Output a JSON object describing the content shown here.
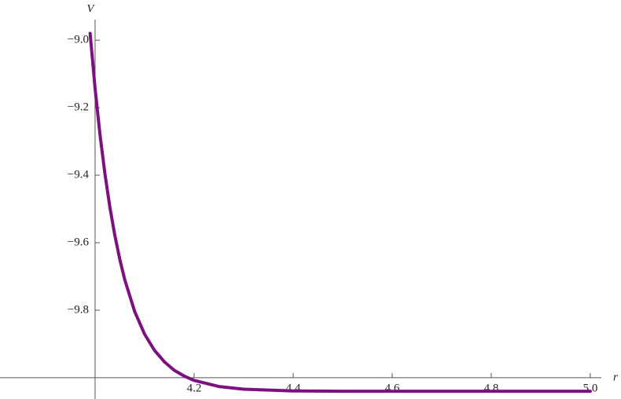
{
  "chart_data": {
    "type": "line",
    "x_label": "r",
    "y_label": "V",
    "x": [
      3.99,
      4.0,
      4.01,
      4.02,
      4.03,
      4.04,
      4.05,
      4.06,
      4.08,
      4.1,
      4.12,
      4.14,
      4.16,
      4.18,
      4.2,
      4.25,
      4.3,
      4.4,
      4.5,
      4.6,
      4.7,
      4.8,
      4.9,
      5.0
    ],
    "series": [
      {
        "color": "#7d1080",
        "values": [
          -8.98,
          -9.143,
          -9.281,
          -9.397,
          -9.496,
          -9.579,
          -9.65,
          -9.71,
          -9.804,
          -9.871,
          -9.919,
          -9.953,
          -9.978,
          -9.995,
          -10.008,
          -10.026,
          -10.034,
          -10.039,
          -10.04,
          -10.04,
          -10.04,
          -10.04,
          -10.04,
          -10.04
        ]
      }
    ],
    "xlim": [
      3.808,
      5.062
    ],
    "ylim": [
      -10.063,
      -8.881
    ],
    "xticks": [
      4.2,
      4.4,
      4.6,
      4.8,
      {
        "value": 5,
        "label": "5.0"
      }
    ],
    "yticks": [
      {
        "value": -9,
        "label": "−9.0"
      },
      {
        "value": -9.2,
        "label": "−9.2"
      },
      {
        "value": -9.4,
        "label": "−9.4"
      },
      {
        "value": -9.6,
        "label": "−9.6"
      },
      {
        "value": -9.8,
        "label": "−9.8"
      }
    ],
    "axes_origin": {
      "x": 4,
      "y": -10
    }
  }
}
